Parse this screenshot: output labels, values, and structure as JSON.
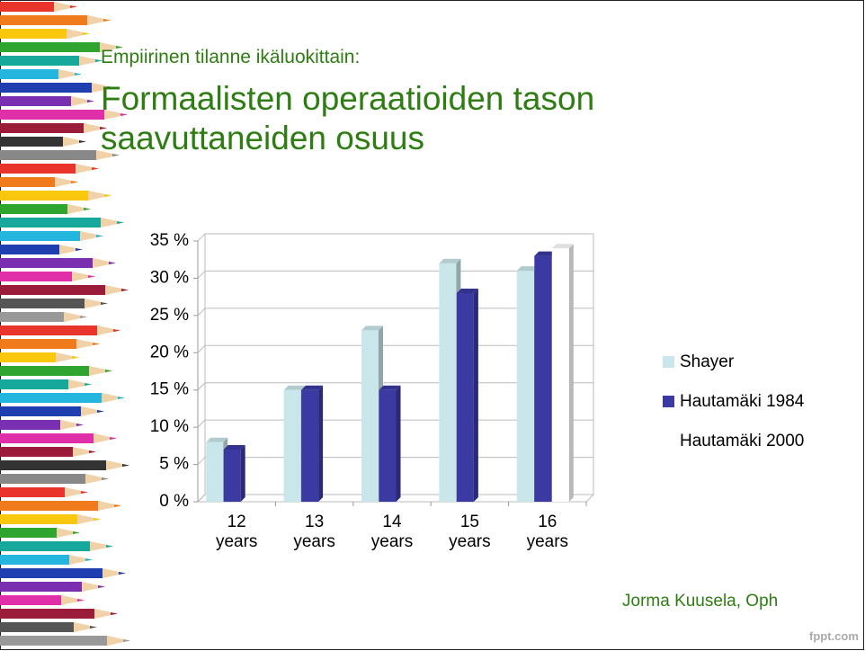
{
  "chart_data": {
    "type": "bar",
    "subtitle": "Empiirinen tilanne ikäluokittain:",
    "title": "Formaalisten operaatioiden tason saavuttaneiden osuus",
    "categories": [
      "12 years",
      "13 years",
      "14 years",
      "15 years",
      "16 years"
    ],
    "series": [
      {
        "name": "Shayer",
        "color": "#c9e7ea",
        "values": [
          8,
          15,
          23,
          32,
          31
        ]
      },
      {
        "name": "Hautamäki 1984",
        "color": "#3a3aa2",
        "values": [
          7,
          15,
          15,
          28,
          33
        ]
      },
      {
        "name": "Hautamäki 2000",
        "color": "#ffffff",
        "values": [
          null,
          null,
          null,
          null,
          34
        ]
      }
    ],
    "ylim": [
      0,
      35
    ],
    "yticks": [
      {
        "value": 0,
        "label": "0 %"
      },
      {
        "value": 5,
        "label": "5 %"
      },
      {
        "value": 10,
        "label": "10 %"
      },
      {
        "value": 15,
        "label": "15 %"
      },
      {
        "value": 20,
        "label": "20 %"
      },
      {
        "value": 25,
        "label": "25 %"
      },
      {
        "value": 30,
        "label": "30 %"
      },
      {
        "value": 35,
        "label": "35 %"
      }
    ],
    "grid": true,
    "legend": "right"
  },
  "footer": {
    "author": "Jorma Kuusela, Oph",
    "brand": "fppt.com"
  }
}
